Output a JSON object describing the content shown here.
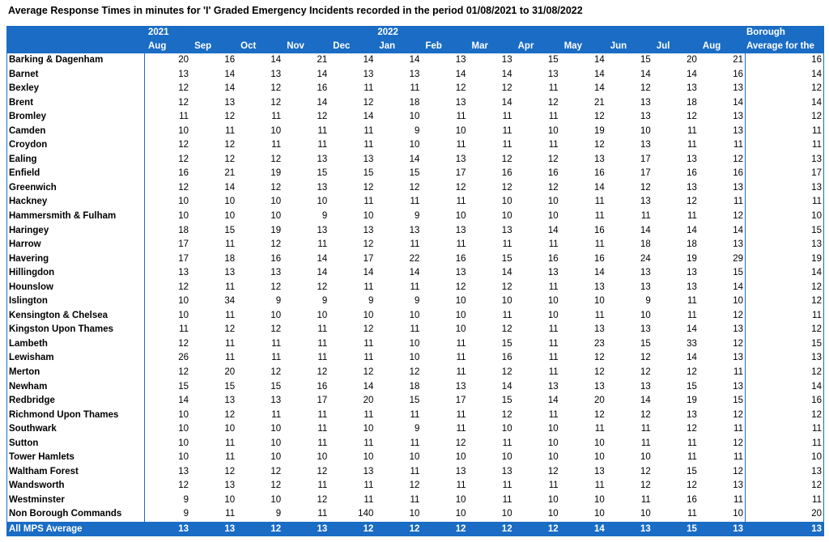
{
  "title": "Average Response Times in minutes for 'I' Graded Emergency Incidents recorded in the period 01/08/2021 to 31/08/2022",
  "header": {
    "years": [
      "2021",
      "2022"
    ],
    "months": [
      "Aug",
      "Sep",
      "Oct",
      "Nov",
      "Dec",
      "Jan",
      "Feb",
      "Mar",
      "Apr",
      "May",
      "Jun",
      "Jul",
      "Aug"
    ],
    "average": [
      "Borough",
      "Average for the"
    ]
  },
  "rows": [
    {
      "name": "Barking & Dagenham",
      "values": [
        20,
        16,
        14,
        21,
        14,
        14,
        13,
        13,
        15,
        14,
        15,
        20,
        21
      ],
      "average": 16
    },
    {
      "name": "Barnet",
      "values": [
        13,
        14,
        13,
        14,
        13,
        13,
        14,
        14,
        13,
        14,
        14,
        14,
        16
      ],
      "average": 14
    },
    {
      "name": "Bexley",
      "values": [
        12,
        14,
        12,
        16,
        11,
        11,
        12,
        12,
        11,
        14,
        12,
        13,
        13
      ],
      "average": 12
    },
    {
      "name": "Brent",
      "values": [
        12,
        13,
        12,
        14,
        12,
        18,
        13,
        14,
        12,
        21,
        13,
        18,
        14
      ],
      "average": 14
    },
    {
      "name": "Bromley",
      "values": [
        11,
        12,
        11,
        12,
        14,
        10,
        11,
        11,
        11,
        12,
        13,
        12,
        13
      ],
      "average": 12
    },
    {
      "name": "Camden",
      "values": [
        10,
        11,
        10,
        11,
        11,
        9,
        10,
        11,
        10,
        19,
        10,
        11,
        13
      ],
      "average": 11
    },
    {
      "name": "Croydon",
      "values": [
        12,
        12,
        11,
        11,
        11,
        10,
        11,
        11,
        11,
        12,
        13,
        11,
        11
      ],
      "average": 11
    },
    {
      "name": "Ealing",
      "values": [
        12,
        12,
        12,
        13,
        13,
        14,
        13,
        12,
        12,
        13,
        17,
        13,
        12
      ],
      "average": 13
    },
    {
      "name": "Enfield",
      "values": [
        16,
        21,
        19,
        15,
        15,
        15,
        17,
        16,
        16,
        16,
        17,
        16,
        16
      ],
      "average": 17
    },
    {
      "name": "Greenwich",
      "values": [
        12,
        14,
        12,
        13,
        12,
        12,
        12,
        12,
        12,
        14,
        12,
        13,
        13
      ],
      "average": 13
    },
    {
      "name": "Hackney",
      "values": [
        10,
        10,
        10,
        10,
        11,
        11,
        11,
        10,
        10,
        11,
        13,
        12,
        11
      ],
      "average": 11
    },
    {
      "name": "Hammersmith & Fulham",
      "values": [
        10,
        10,
        10,
        9,
        10,
        9,
        10,
        10,
        10,
        11,
        11,
        11,
        12
      ],
      "average": 10
    },
    {
      "name": "Haringey",
      "values": [
        18,
        15,
        19,
        13,
        13,
        13,
        13,
        13,
        14,
        16,
        14,
        14,
        14
      ],
      "average": 15
    },
    {
      "name": "Harrow",
      "values": [
        17,
        11,
        12,
        11,
        12,
        11,
        11,
        11,
        11,
        11,
        18,
        18,
        13
      ],
      "average": 13
    },
    {
      "name": "Havering",
      "values": [
        17,
        18,
        16,
        14,
        17,
        22,
        16,
        15,
        16,
        16,
        24,
        19,
        29
      ],
      "average": 19
    },
    {
      "name": "Hillingdon",
      "values": [
        13,
        13,
        13,
        14,
        14,
        14,
        13,
        14,
        13,
        14,
        13,
        13,
        15
      ],
      "average": 14
    },
    {
      "name": "Hounslow",
      "values": [
        12,
        11,
        12,
        12,
        11,
        11,
        12,
        12,
        11,
        13,
        13,
        13,
        14
      ],
      "average": 12
    },
    {
      "name": "Islington",
      "values": [
        10,
        34,
        9,
        9,
        9,
        9,
        10,
        10,
        10,
        10,
        9,
        11,
        10
      ],
      "average": 12
    },
    {
      "name": "Kensington & Chelsea",
      "values": [
        10,
        11,
        10,
        10,
        10,
        10,
        10,
        11,
        10,
        11,
        10,
        11,
        12
      ],
      "average": 11
    },
    {
      "name": "Kingston Upon Thames",
      "values": [
        11,
        12,
        12,
        11,
        12,
        11,
        10,
        12,
        11,
        13,
        13,
        14,
        13
      ],
      "average": 12
    },
    {
      "name": "Lambeth",
      "values": [
        12,
        11,
        11,
        11,
        11,
        10,
        11,
        15,
        11,
        23,
        15,
        33,
        12
      ],
      "average": 15
    },
    {
      "name": "Lewisham",
      "values": [
        26,
        11,
        11,
        11,
        11,
        10,
        11,
        16,
        11,
        12,
        12,
        14,
        13
      ],
      "average": 13
    },
    {
      "name": "Merton",
      "values": [
        12,
        20,
        12,
        12,
        12,
        12,
        11,
        12,
        11,
        12,
        12,
        12,
        11
      ],
      "average": 12
    },
    {
      "name": "Newham",
      "values": [
        15,
        15,
        15,
        16,
        14,
        18,
        13,
        14,
        13,
        13,
        13,
        15,
        13
      ],
      "average": 14
    },
    {
      "name": "Redbridge",
      "values": [
        14,
        13,
        13,
        17,
        20,
        15,
        17,
        15,
        14,
        20,
        14,
        19,
        15
      ],
      "average": 16
    },
    {
      "name": "Richmond Upon Thames",
      "values": [
        10,
        12,
        11,
        11,
        11,
        11,
        11,
        12,
        11,
        12,
        12,
        13,
        12
      ],
      "average": 12
    },
    {
      "name": "Southwark",
      "values": [
        10,
        10,
        10,
        11,
        10,
        9,
        11,
        10,
        10,
        11,
        11,
        12,
        11
      ],
      "average": 11
    },
    {
      "name": "Sutton",
      "values": [
        10,
        11,
        10,
        11,
        11,
        11,
        12,
        11,
        10,
        10,
        11,
        11,
        12
      ],
      "average": 11
    },
    {
      "name": "Tower Hamlets",
      "values": [
        10,
        11,
        10,
        10,
        10,
        10,
        10,
        10,
        10,
        10,
        10,
        11,
        11
      ],
      "average": 10
    },
    {
      "name": "Waltham Forest",
      "values": [
        13,
        12,
        12,
        12,
        13,
        11,
        13,
        13,
        12,
        13,
        12,
        15,
        12
      ],
      "average": 13
    },
    {
      "name": "Wandsworth",
      "values": [
        12,
        13,
        12,
        11,
        11,
        12,
        11,
        11,
        11,
        11,
        12,
        12,
        13
      ],
      "average": 12
    },
    {
      "name": "Westminster",
      "values": [
        9,
        10,
        10,
        12,
        11,
        11,
        10,
        11,
        10,
        10,
        11,
        16,
        11
      ],
      "average": 11
    },
    {
      "name": "Non Borough Commands",
      "values": [
        9,
        11,
        9,
        11,
        140,
        10,
        10,
        10,
        10,
        10,
        10,
        11,
        10
      ],
      "average": 20
    }
  ],
  "footer": {
    "name": "All MPS Average",
    "values": [
      13,
      13,
      12,
      13,
      12,
      12,
      12,
      12,
      12,
      14,
      13,
      15,
      13
    ],
    "average": 13
  }
}
